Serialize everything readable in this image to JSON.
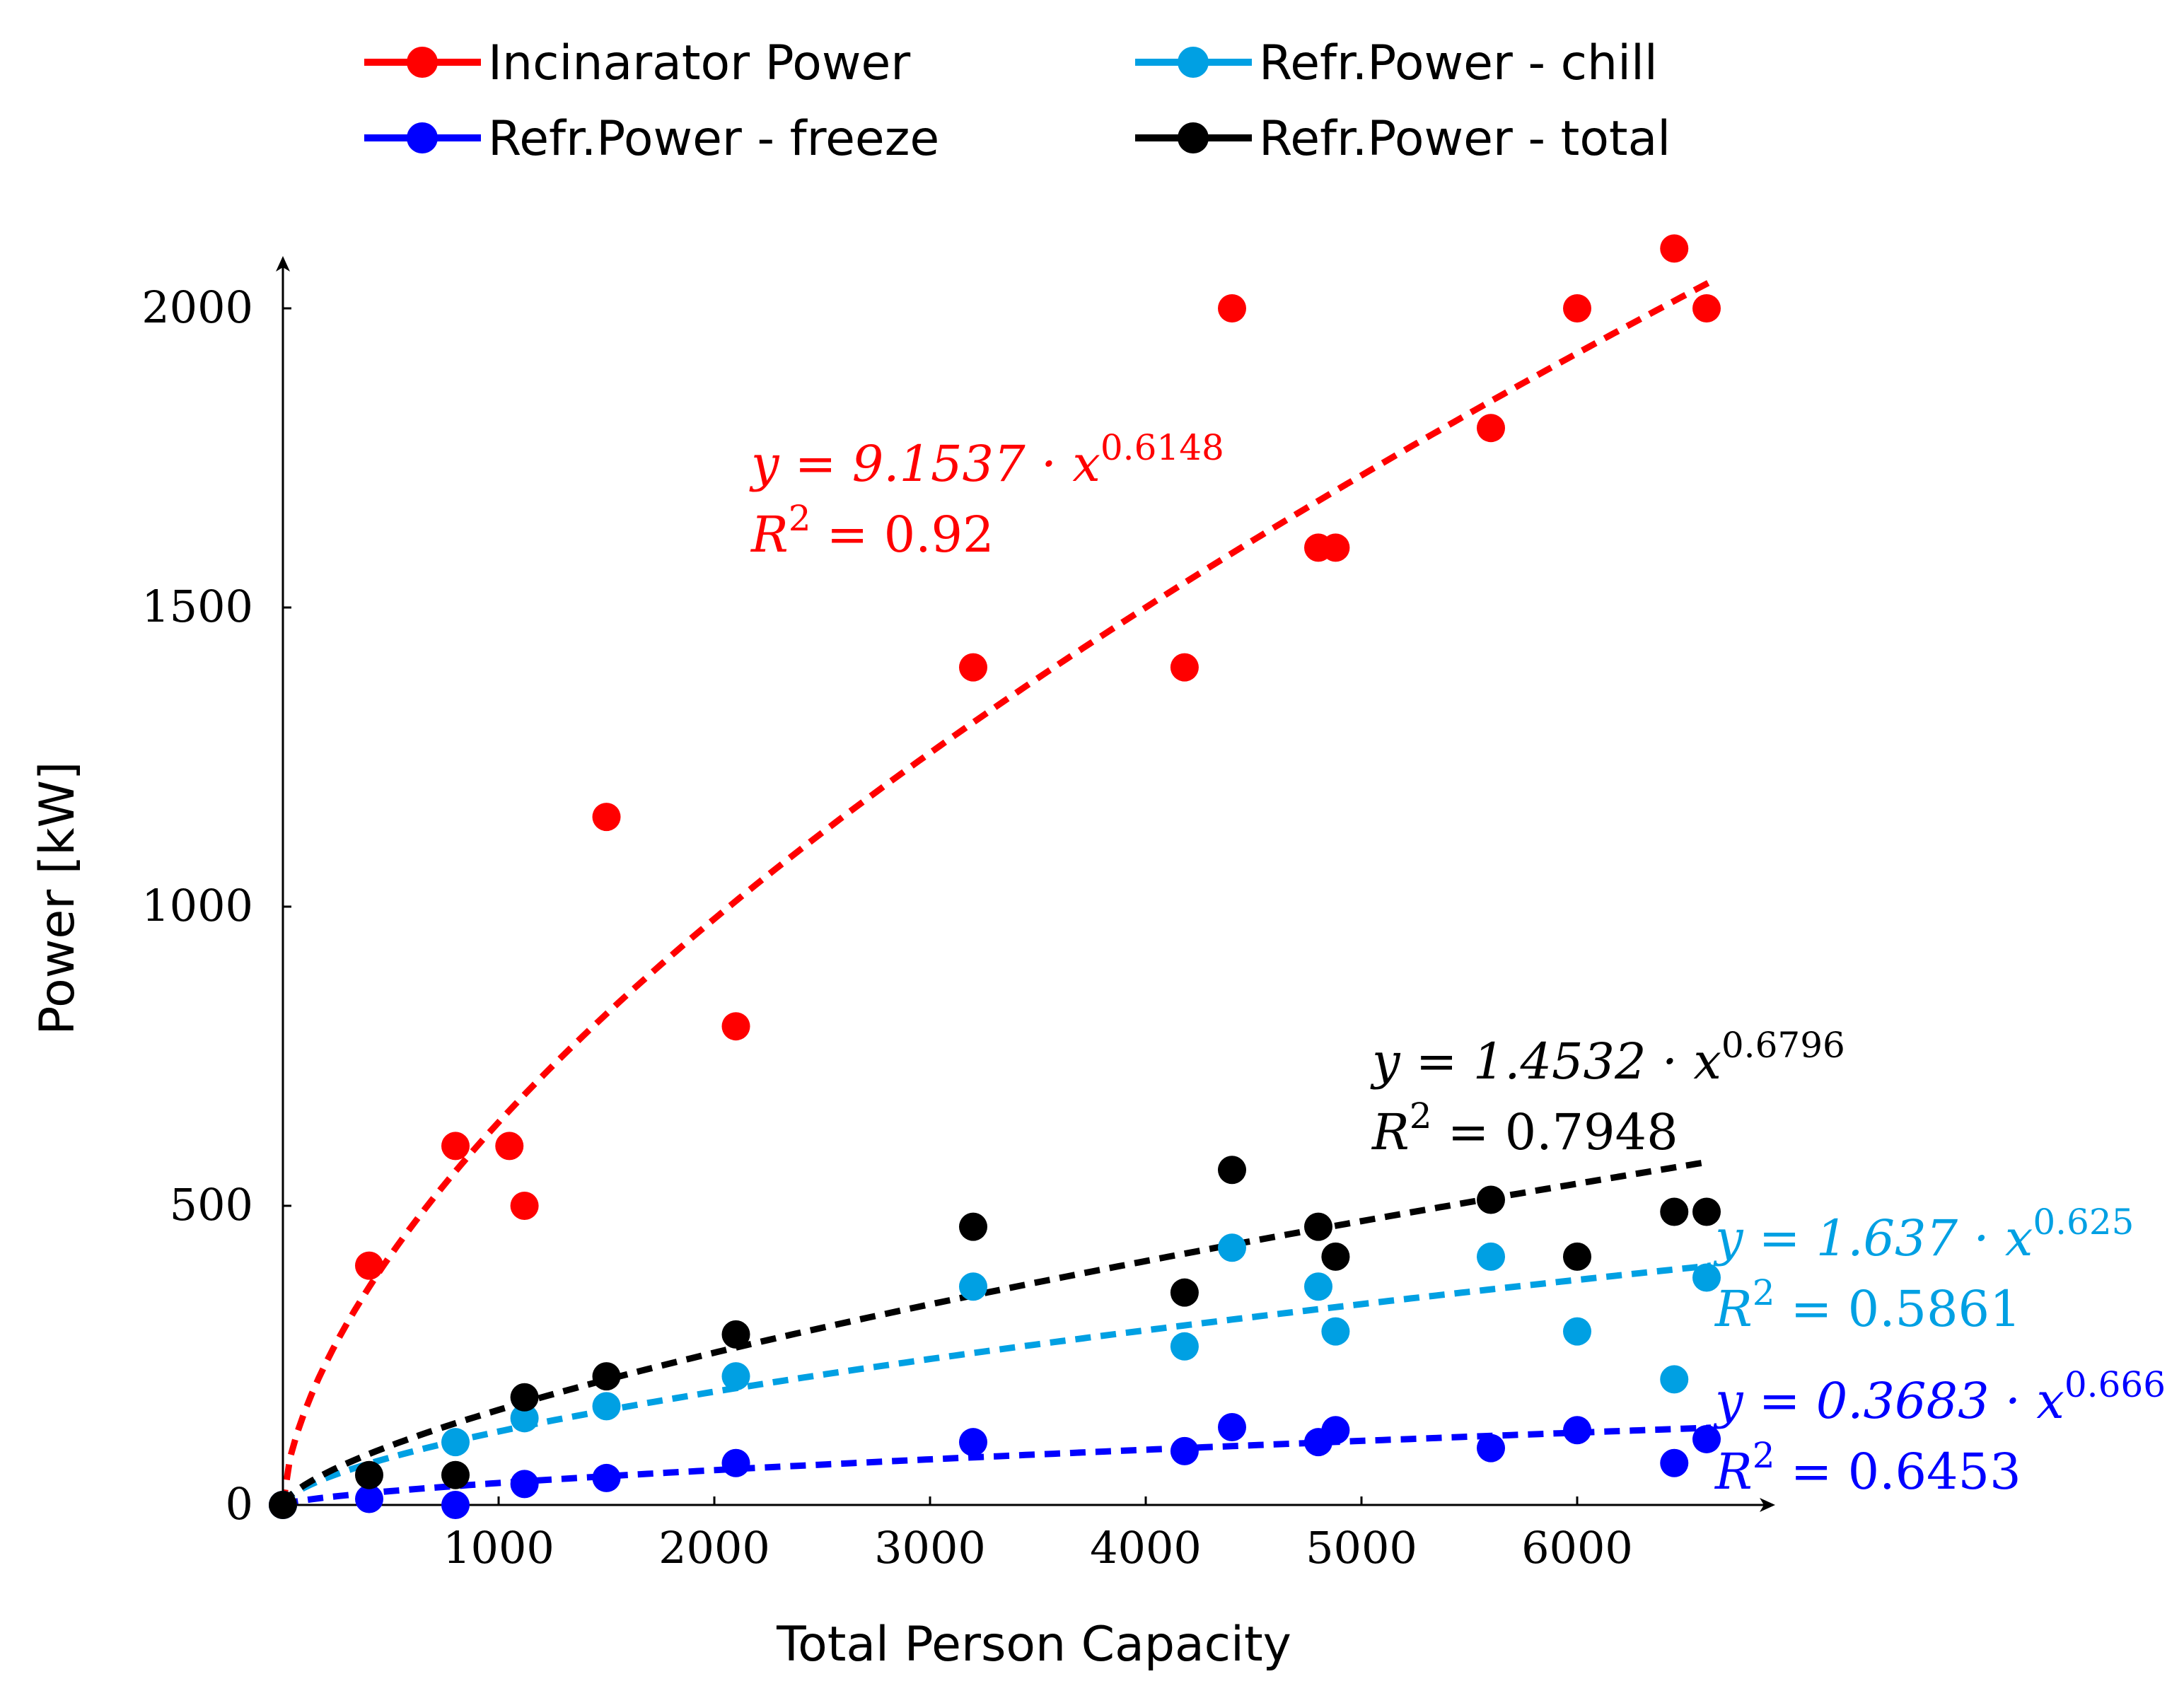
{
  "chart_data": {
    "type": "scatter",
    "xlabel": "Total Person Capacity",
    "ylabel": "Power [kW]",
    "xlim": [
      0,
      7000
    ],
    "ylim": [
      0,
      2150
    ],
    "xticks": [
      "1000",
      "2000",
      "3000",
      "4000",
      "5000",
      "6000"
    ],
    "yticks": [
      "0",
      "500",
      "1000",
      "1500",
      "2000"
    ],
    "x_tick_values": [
      1000,
      2000,
      3000,
      4000,
      5000,
      6000
    ],
    "y_tick_values": [
      0,
      500,
      1000,
      1500,
      2000
    ],
    "legend_position": "top",
    "series": [
      {
        "name": "Incinarator Power",
        "color": "#ff0000",
        "points": [
          [
            0,
            0
          ],
          [
            400,
            400
          ],
          [
            800,
            600
          ],
          [
            1050,
            600
          ],
          [
            1120,
            500
          ],
          [
            1500,
            1150
          ],
          [
            2100,
            800
          ],
          [
            3200,
            1400
          ],
          [
            4180,
            1400
          ],
          [
            4400,
            2000
          ],
          [
            4800,
            1600
          ],
          [
            4880,
            1600
          ],
          [
            5600,
            1800
          ],
          [
            6000,
            2000
          ],
          [
            6450,
            2100
          ],
          [
            6600,
            2000
          ]
        ],
        "fit": {
          "a": 9.1537,
          "b": 0.6148
        },
        "equation": "y = 9.1537 · x",
        "exponent": "0.6148",
        "r2_label": "R",
        "r2_power": "2",
        "r2_value": " = 0.92"
      },
      {
        "name": "Refr.Power - freeze",
        "color": "#0000ff",
        "points": [
          [
            0,
            0
          ],
          [
            400,
            10
          ],
          [
            800,
            0
          ],
          [
            1120,
            35
          ],
          [
            1500,
            45
          ],
          [
            2100,
            70
          ],
          [
            3200,
            105
          ],
          [
            4180,
            90
          ],
          [
            4400,
            130
          ],
          [
            4800,
            105
          ],
          [
            4880,
            125
          ],
          [
            5600,
            95
          ],
          [
            6000,
            125
          ],
          [
            6450,
            70
          ],
          [
            6600,
            110
          ]
        ],
        "fit": {
          "a": 0.3683,
          "b": 0.666
        },
        "equation": "y = 0.3683 · x",
        "exponent": "0.666",
        "r2_label": "R",
        "r2_power": "2",
        "r2_value": " = 0.6453"
      },
      {
        "name": "Refr.Power - chill",
        "color": "#00a0e3",
        "points": [
          [
            0,
            0
          ],
          [
            800,
            105
          ],
          [
            1120,
            145
          ],
          [
            1500,
            165
          ],
          [
            2100,
            215
          ],
          [
            3200,
            365
          ],
          [
            4180,
            265
          ],
          [
            4400,
            430
          ],
          [
            4800,
            365
          ],
          [
            4880,
            290
          ],
          [
            5600,
            415
          ],
          [
            6000,
            290
          ],
          [
            6450,
            210
          ],
          [
            6600,
            380
          ]
        ],
        "fit": {
          "a": 1.637,
          "b": 0.625
        },
        "equation": "y = 1.637 · x",
        "exponent": "0.625",
        "r2_label": "R",
        "r2_power": "2",
        "r2_value": " = 0.5861"
      },
      {
        "name": "Refr.Power - total",
        "color": "#000000",
        "points": [
          [
            0,
            0
          ],
          [
            400,
            50
          ],
          [
            800,
            50
          ],
          [
            1120,
            180
          ],
          [
            1500,
            215
          ],
          [
            2100,
            285
          ],
          [
            3200,
            465
          ],
          [
            4180,
            355
          ],
          [
            4400,
            560
          ],
          [
            4800,
            465
          ],
          [
            4880,
            415
          ],
          [
            5600,
            510
          ],
          [
            6000,
            415
          ],
          [
            6450,
            490
          ],
          [
            6600,
            490
          ]
        ],
        "fit": {
          "a": 1.4532,
          "b": 0.6796
        },
        "equation": "y = 1.4532 · x",
        "exponent": "0.6796",
        "r2_label": "R",
        "r2_power": "2",
        "r2_value": " = 0.7948"
      }
    ]
  }
}
